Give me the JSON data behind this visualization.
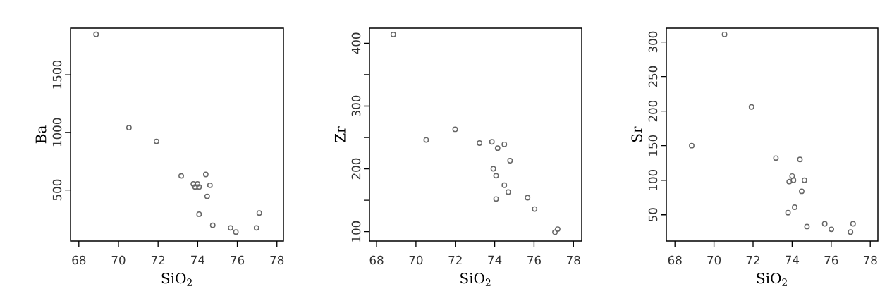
{
  "chart_data": [
    {
      "type": "scatter",
      "xlabel": "SiO$_{2}$",
      "ylabel": "Ba",
      "marker": "circle",
      "color": "#666666",
      "xlim": [
        67.58,
        78.33
      ],
      "ylim": [
        57,
        1904
      ],
      "xticks": [
        68,
        70,
        72,
        74,
        76,
        78
      ],
      "yticks": [
        500,
        1000,
        1500
      ],
      "x": [
        68.87,
        70.53,
        71.92,
        73.17,
        73.78,
        73.87,
        73.99,
        74.07,
        74.41,
        74.62,
        74.48,
        74.07,
        74.76,
        75.66,
        75.93,
        76.97,
        77.11
      ],
      "values": [
        1851,
        1041,
        922,
        622,
        553,
        527,
        553,
        527,
        635,
        541,
        445,
        290,
        194,
        171,
        135,
        171,
        300
      ]
    },
    {
      "type": "scatter",
      "xlabel": "SiO$_{2}$",
      "ylabel": "Zr",
      "marker": "circle",
      "color": "#666666",
      "xlim": [
        67.64,
        78.42
      ],
      "ylim": [
        85,
        424
      ],
      "xticks": [
        68,
        70,
        72,
        74,
        76,
        78
      ],
      "yticks": [
        100,
        {
          "value": 150,
          "label": null
        },
        200,
        {
          "value": 250,
          "label": null
        },
        300,
        {
          "value": 350,
          "label": null
        },
        400
      ],
      "x": [
        68.85,
        70.52,
        71.99,
        73.23,
        73.86,
        74.15,
        74.49,
        74.78,
        73.93,
        74.07,
        74.49,
        74.69,
        74.07,
        75.67,
        76.03,
        77.06,
        77.2
      ],
      "values": [
        414,
        246,
        263,
        241,
        243,
        233,
        239,
        213,
        200,
        189,
        174,
        163,
        152,
        154,
        136,
        99,
        104
      ]
    },
    {
      "type": "scatter",
      "xlabel": "SiO$_{2}$",
      "ylabel": "Sr",
      "marker": "circle",
      "color": "#666666",
      "xlim": [
        67.56,
        78.39
      ],
      "ylim": [
        12,
        320
      ],
      "xticks": [
        68,
        70,
        72,
        74,
        76,
        78
      ],
      "yticks": [
        50,
        100,
        150,
        200,
        250,
        300
      ],
      "x": [
        68.86,
        70.54,
        71.92,
        73.17,
        74.4,
        74.0,
        73.85,
        74.07,
        74.63,
        74.49,
        74.13,
        73.79,
        74.76,
        75.67,
        76.01,
        76.99,
        77.12
      ],
      "values": [
        150,
        311,
        206,
        132,
        130,
        106,
        98,
        100,
        100,
        84,
        61,
        53,
        33,
        37,
        29,
        25,
        37
      ]
    }
  ]
}
